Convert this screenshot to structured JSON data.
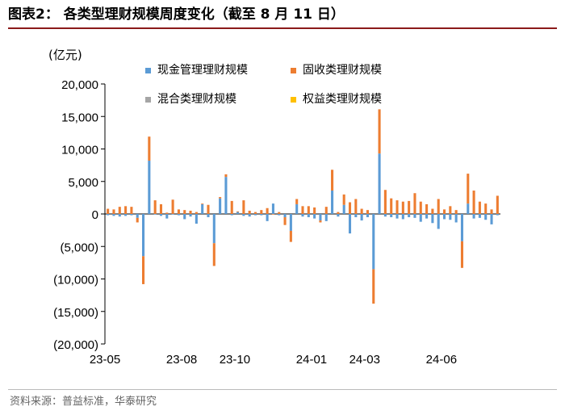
{
  "title": "图表2： 各类型理财规模周度变化（截至 8 月 11 日）",
  "source": "资料来源：普益标准，华泰研究",
  "chart_data": {
    "type": "bar",
    "stacked": true,
    "unit_label": "(亿元)",
    "ylim": [
      -20000,
      20000
    ],
    "yticks": [
      20000,
      15000,
      10000,
      5000,
      0,
      -5000,
      -10000,
      -15000,
      -20000
    ],
    "ytick_labels": [
      "20,000",
      "15,000",
      "10,000",
      "5,000",
      "0",
      "(5,000)",
      "(10,000)",
      "(15,000)",
      "(20,000)"
    ],
    "x_tick_labels": [
      {
        "label": "23-05",
        "index": 0
      },
      {
        "label": "23-08",
        "index": 13
      },
      {
        "label": "23-10",
        "index": 22
      },
      {
        "label": "24-01",
        "index": 35
      },
      {
        "label": "24-03",
        "index": 44
      },
      {
        "label": "24-06",
        "index": 57
      }
    ],
    "legend_position": "top-right",
    "series": [
      {
        "name": "现金管理理财规模",
        "color": "#5b9bd5",
        "values": [
          -200,
          -300,
          -400,
          -300,
          -200,
          -600,
          -6500,
          8200,
          -100,
          -300,
          -700,
          -100,
          -200,
          -800,
          -400,
          -1500,
          1500,
          -500,
          -4500,
          2400,
          5700,
          -200,
          300,
          -300,
          -400,
          -200,
          -200,
          -1100,
          1600,
          -200,
          -500,
          -2600,
          1500,
          -400,
          -500,
          -700,
          -1000,
          -1100,
          3600,
          -400,
          1400,
          -3000,
          -500,
          -1000,
          -500,
          -8500,
          9300,
          -400,
          -500,
          -700,
          -800,
          -500,
          -600,
          -1200,
          -700,
          -1400,
          -2300,
          -800,
          -900,
          -1300,
          -4200,
          1600,
          -700,
          -600,
          -900,
          -1600,
          -200
        ],
        "pos_values": [
          0,
          0,
          0,
          0,
          0,
          0,
          0,
          8200,
          0,
          0,
          0,
          0,
          0,
          0,
          0,
          0,
          1500,
          0,
          0,
          2400,
          5700,
          0,
          300,
          0,
          0,
          0,
          0,
          0,
          1600,
          0,
          0,
          0,
          1500,
          0,
          0,
          0,
          0,
          0,
          3600,
          0,
          1400,
          0,
          0,
          0,
          0,
          0,
          9300,
          0,
          0,
          0,
          0,
          0,
          0,
          0,
          0,
          0,
          0,
          0,
          0,
          0,
          0,
          1600,
          0,
          0,
          0,
          0,
          0
        ]
      },
      {
        "name": "固收类理财规模",
        "color": "#ed7d31",
        "values": [
          800,
          700,
          1100,
          1200,
          1100,
          -700,
          -4300,
          3700,
          2100,
          1500,
          200,
          2200,
          700,
          600,
          500,
          300,
          100,
          1400,
          -3500,
          200,
          400,
          2000,
          100,
          2100,
          500,
          300,
          600,
          900,
          -100,
          300,
          -1200,
          -1700,
          800,
          1200,
          1200,
          1000,
          -300,
          1100,
          3200,
          300,
          1600,
          1800,
          2300,
          800,
          600,
          -5300,
          6800,
          3700,
          2400,
          2100,
          1900,
          2000,
          3200,
          1900,
          1500,
          800,
          2300,
          700,
          1200,
          600,
          -4100,
          4600,
          3600,
          1900,
          1600,
          700,
          2800
        ]
      },
      {
        "name": "混合类理财规模",
        "color": "#a5a5a5",
        "values": []
      },
      {
        "name": "权益类理财规模",
        "color": "#ffc000",
        "values": []
      }
    ]
  }
}
